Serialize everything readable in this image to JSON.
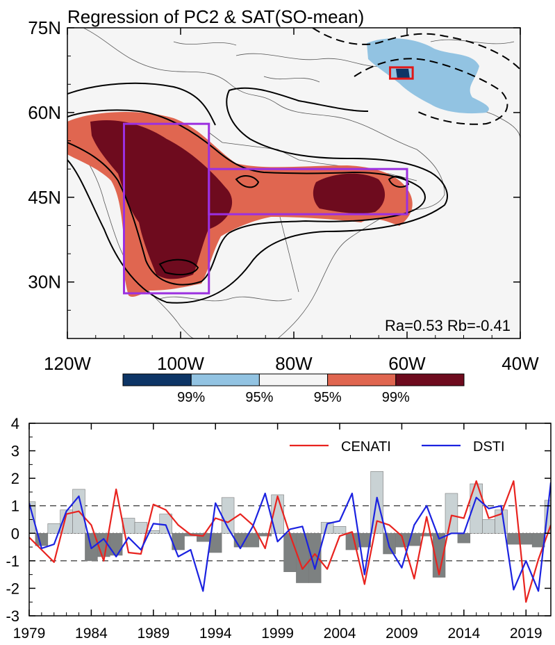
{
  "chart_data": [
    {
      "type": "heatmap",
      "title": "Regression of PC2 & SAT(SO-mean)",
      "annotation": "Ra=0.53 Rb=-0.41",
      "x_ticks": [
        "120W",
        "100W",
        "80W",
        "60W",
        "40W"
      ],
      "x_values": [
        -120,
        -100,
        -80,
        -60,
        -40
      ],
      "y_ticks": [
        "30N",
        "45N",
        "60N",
        "75N"
      ],
      "y_values": [
        30,
        45,
        60,
        75
      ],
      "xlim": [
        -120,
        -40
      ],
      "ylim": [
        20,
        75
      ],
      "colorbar": {
        "colors": [
          "#0d3566",
          "#92c3e2",
          "#f5f5f5",
          "#e06650",
          "#6e0b1e"
        ],
        "labels": [
          "99%",
          "95%",
          "95%",
          "99%"
        ]
      },
      "boxes": [
        {
          "name": "purple-west",
          "color": "#9b30e0",
          "lon": [
            -110,
            -95
          ],
          "lat": [
            28,
            58
          ]
        },
        {
          "name": "purple-east",
          "color": "#9b30e0",
          "lon": [
            -95,
            -60
          ],
          "lat": [
            42,
            50
          ]
        },
        {
          "name": "red-north",
          "color": "#e01818",
          "lon": [
            -63,
            -59
          ],
          "lat": [
            66,
            68
          ]
        }
      ]
    },
    {
      "type": "line",
      "series": [
        {
          "name": "CENATI",
          "color": "#e8231f",
          "values": [
            -0.15,
            -0.6,
            -1.05,
            0.7,
            0.8,
            0.3,
            -1.0,
            1.6,
            -0.7,
            -0.75,
            1.05,
            0.85,
            0.3,
            -0.05,
            -0.1,
            0.55,
            0.4,
            0.7,
            0.3,
            -0.55,
            1.35,
            -0.05,
            -1.3,
            -0.75,
            -1.3,
            -0.1,
            0.05,
            -1.85,
            0.45,
            0.3,
            -0.1,
            -1.65,
            0.6,
            -1.5,
            0.65,
            0.55,
            1.9,
            0.55,
            0.7,
            1.9,
            -2.5,
            -0.95,
            0.3
          ]
        },
        {
          "name": "DSTI",
          "color": "#1b22e0",
          "values": [
            1.1,
            -0.55,
            -0.4,
            0.8,
            1.35,
            -0.55,
            -0.2,
            -0.85,
            -0.15,
            -0.6,
            0.35,
            0.3,
            -0.85,
            -0.6,
            -2.1,
            1.1,
            0.2,
            -0.55,
            0.25,
            1.45,
            -0.3,
            0.15,
            0.25,
            -1.3,
            0.35,
            0.45,
            1.45,
            -1.5,
            1.3,
            -0.5,
            -1.25,
            0.3,
            1.0,
            -0.2,
            0.0,
            0.0,
            1.3,
            0.9,
            1.0,
            -2.05,
            -1.0,
            -2.1,
            1.85
          ]
        }
      ],
      "bars": {
        "name": "PC2",
        "values": [
          1.15,
          -0.45,
          0.35,
          0.85,
          1.6,
          -1.0,
          -0.85,
          -0.8,
          0.55,
          0.4,
          0.1,
          0.7,
          -0.6,
          -0.1,
          -0.3,
          -0.7,
          1.3,
          -0.5,
          -0.5,
          -0.1,
          1.4,
          -1.4,
          -1.8,
          -1.8,
          0.4,
          0.25,
          -0.6,
          -0.5,
          2.25,
          -0.75,
          -0.5,
          -0.45,
          -0.1,
          -1.6,
          1.45,
          -0.35,
          1.8,
          0.5,
          0.85,
          -0.4,
          -0.4,
          -0.5,
          1.2
        ]
      },
      "x_start": 1979,
      "x_end": 2021,
      "x_ticks": [
        "1979",
        "1984",
        "1989",
        "1994",
        "1999",
        "2004",
        "2009",
        "2014",
        "2019"
      ],
      "y_ticks": [
        "4",
        "3",
        "2",
        "1",
        "0",
        "-1",
        "-2",
        "-3"
      ],
      "ylim": [
        -3,
        4
      ],
      "reference_lines": [
        1,
        0,
        -1
      ],
      "legend_position": "top-right"
    }
  ]
}
